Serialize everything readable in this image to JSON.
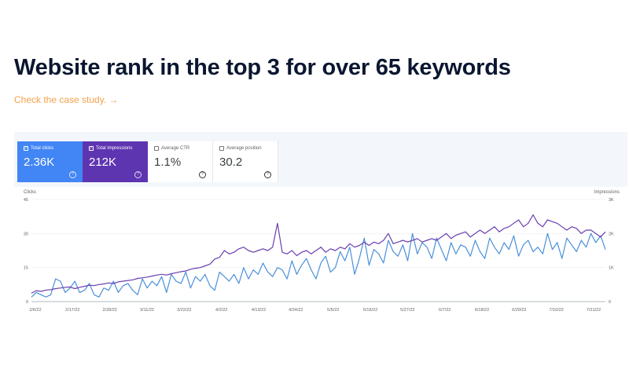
{
  "headline": "Website rank in the top 3 for over 65 keywords",
  "case_link": "Check the case study. →",
  "metrics": [
    {
      "label": "Total clicks",
      "value": "2.36K",
      "checked": true,
      "color": "#4285f4"
    },
    {
      "label": "Total impressions",
      "value": "212K",
      "checked": true,
      "color": "#5e35b1"
    },
    {
      "label": "Average CTR",
      "value": "1.1%",
      "checked": false
    },
    {
      "label": "Average position",
      "value": "30.2",
      "checked": false
    }
  ],
  "chart_data": {
    "type": "line",
    "left_axis": {
      "title": "Clicks",
      "ticks": [
        "0",
        "15",
        "30",
        "45"
      ],
      "min": 0,
      "max": 45
    },
    "right_axis": {
      "title": "Impressions",
      "ticks": [
        "0",
        "1K",
        "2K",
        "3K"
      ],
      "min": 0,
      "max": 3000
    },
    "x_labels": [
      "2/6/22",
      "2/17/22",
      "2/28/22",
      "3/11/22",
      "3/22/22",
      "4/2/22",
      "4/13/22",
      "4/24/22",
      "5/5/22",
      "5/16/22",
      "5/27/22",
      "6/7/22",
      "6/18/22",
      "6/29/22",
      "7/10/22",
      "7/21/22"
    ],
    "grid": true,
    "series": [
      {
        "name": "Total clicks",
        "axis": "left",
        "color": "#4a90d9",
        "values": [
          2,
          4,
          3,
          2,
          3,
          10,
          9,
          4,
          6,
          9,
          4,
          5,
          8,
          3,
          2,
          6,
          5,
          9,
          4,
          7,
          8,
          5,
          3,
          10,
          6,
          9,
          7,
          11,
          4,
          12,
          9,
          8,
          13,
          6,
          11,
          9,
          12,
          7,
          5,
          13,
          11,
          9,
          12,
          8,
          15,
          10,
          14,
          12,
          17,
          13,
          11,
          15,
          14,
          10,
          18,
          12,
          16,
          19,
          14,
          10,
          17,
          20,
          13,
          15,
          22,
          18,
          24,
          12,
          19,
          28,
          16,
          23,
          21,
          17,
          27,
          22,
          20,
          25,
          18,
          30,
          21,
          26,
          24,
          19,
          28,
          23,
          18,
          26,
          21,
          25,
          24,
          20,
          27,
          22,
          19,
          28,
          24,
          21,
          26,
          23,
          29,
          20,
          25,
          27,
          22,
          24,
          21,
          30,
          23,
          26,
          19,
          28,
          25,
          22,
          27,
          24,
          30,
          26,
          29,
          23
        ]
      },
      {
        "name": "Total impressions",
        "axis": "right",
        "color": "#6a3fb0",
        "values": [
          250,
          320,
          300,
          340,
          350,
          380,
          400,
          420,
          430,
          380,
          420,
          450,
          480,
          470,
          500,
          520,
          550,
          530,
          580,
          600,
          620,
          640,
          680,
          700,
          720,
          750,
          780,
          800,
          780,
          820,
          850,
          880,
          900,
          950,
          980,
          1000,
          1050,
          1100,
          1250,
          1300,
          1500,
          1400,
          1450,
          1550,
          1600,
          1500,
          1450,
          1500,
          1550,
          1500,
          1600,
          2300,
          1450,
          1400,
          1500,
          1350,
          1450,
          1500,
          1400,
          1500,
          1600,
          1450,
          1550,
          1500,
          1600,
          1550,
          1700,
          1600,
          1650,
          1750,
          1650,
          1750,
          1700,
          1800,
          2000,
          1700,
          1750,
          1800,
          1750,
          1800,
          1850,
          1750,
          1800,
          1850,
          1800,
          1900,
          2000,
          1850,
          1950,
          2000,
          2050,
          1900,
          2000,
          2100,
          2000,
          2100,
          2200,
          2050,
          2150,
          2200,
          2300,
          2400,
          2200,
          2300,
          2550,
          2300,
          2200,
          2400,
          2350,
          2300,
          2200,
          2100,
          2200,
          2150,
          2000,
          2100,
          2100,
          2000,
          1900,
          2050
        ]
      }
    ]
  }
}
